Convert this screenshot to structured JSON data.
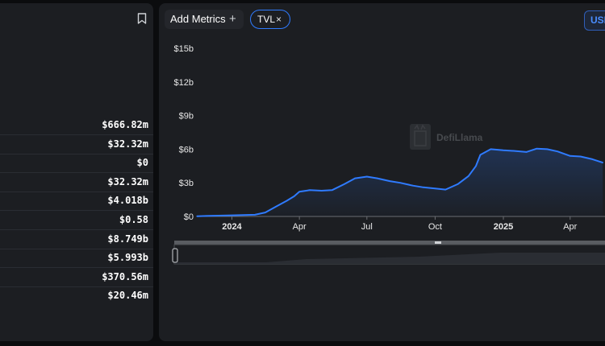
{
  "stats": {
    "values": [
      "$666.82m",
      "$32.32m",
      "$0",
      "$32.32m",
      "$4.018b",
      "$0.58",
      "$8.749b",
      "$5.993b",
      "$370.56m",
      "$20.46m"
    ]
  },
  "toolbar": {
    "add_metrics_label": "Add Metrics",
    "add_icon": "+",
    "tvl_chip_label": "TVL",
    "tvl_chip_close": "×",
    "currency_label": "USD"
  },
  "watermark": {
    "text": "DefiLlama"
  },
  "chart_data": {
    "type": "area",
    "title": "",
    "xlabel": "",
    "ylabel": "",
    "ylim": [
      0,
      15
    ],
    "y_ticks": [
      "$0",
      "$3b",
      "$6b",
      "$9b",
      "$12b",
      "$15b"
    ],
    "x_ticks": [
      "2024",
      "Apr",
      "Jul",
      "Oct",
      "2025",
      "Apr"
    ],
    "series": [
      {
        "color": "#2f7bff",
        "x": [
          "2023-11-15",
          "2023-12-01",
          "2024-01-01",
          "2024-02-01",
          "2024-02-15",
          "2024-03-01",
          "2024-03-15",
          "2024-03-25",
          "2024-04-01",
          "2024-04-15",
          "2024-05-01",
          "2024-05-15",
          "2024-06-01",
          "2024-06-15",
          "2024-07-01",
          "2024-07-15",
          "2024-08-01",
          "2024-08-15",
          "2024-09-01",
          "2024-09-15",
          "2024-10-01",
          "2024-10-15",
          "2024-11-01",
          "2024-11-15",
          "2024-11-25",
          "2024-12-01",
          "2024-12-15",
          "2025-01-01",
          "2025-01-15",
          "2025-02-01",
          "2025-02-15",
          "2025-03-01",
          "2025-03-15",
          "2025-04-01",
          "2025-04-15",
          "2025-05-01",
          "2025-05-15"
        ],
        "values": [
          0.02,
          0.05,
          0.1,
          0.15,
          0.35,
          0.9,
          1.4,
          1.8,
          2.2,
          2.35,
          2.3,
          2.35,
          2.9,
          3.4,
          3.55,
          3.4,
          3.15,
          3.0,
          2.75,
          2.6,
          2.5,
          2.4,
          2.9,
          3.6,
          4.5,
          5.5,
          6.0,
          5.9,
          5.85,
          5.75,
          6.05,
          6.0,
          5.8,
          5.4,
          5.35,
          5.1,
          4.8
        ]
      }
    ]
  }
}
